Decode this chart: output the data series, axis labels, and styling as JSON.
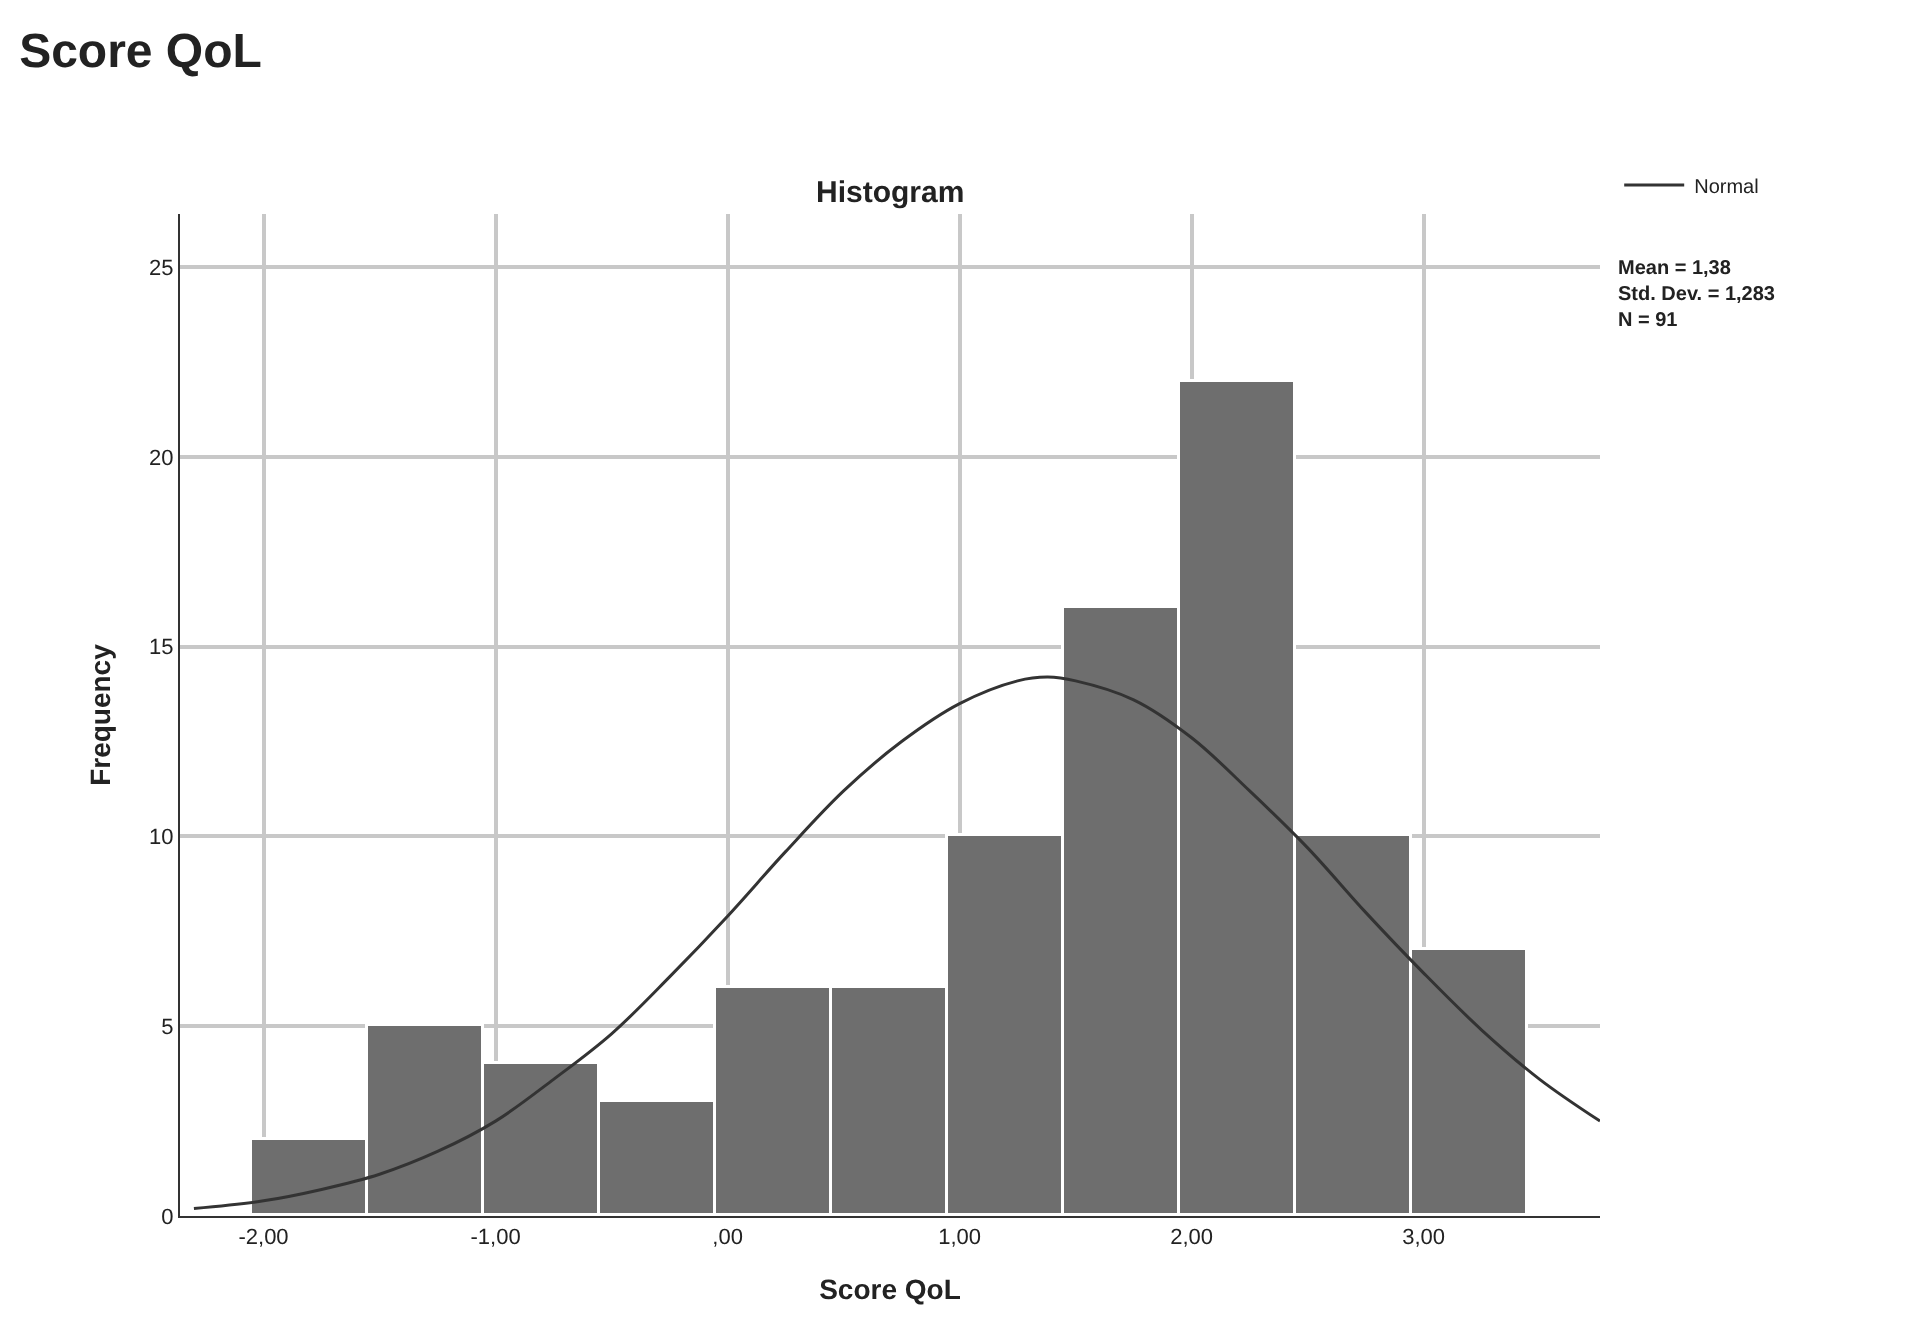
{
  "chart_data": {
    "type": "histogram",
    "title": "Score QoL",
    "subtitle": "Histogram",
    "xlabel": "Score QoL",
    "ylabel": "Frequency",
    "bins": [
      -2.05,
      -1.55,
      -1.05,
      -0.55,
      -0.05,
      0.45,
      0.95,
      1.45,
      1.95,
      2.45,
      2.95,
      3.45
    ],
    "values": [
      2,
      5,
      4,
      3,
      6,
      6,
      10,
      16,
      22,
      10,
      7
    ],
    "color": "#6e6e6e",
    "series": [
      {
        "type": "line",
        "name": "Normal",
        "color": "#333333",
        "x": [
          -2.3,
          -2.0,
          -1.75,
          -1.5,
          -1.25,
          -1.0,
          -0.75,
          -0.5,
          -0.25,
          0.0,
          0.25,
          0.5,
          0.75,
          1.0,
          1.25,
          1.38,
          1.5,
          1.75,
          2.0,
          2.25,
          2.5,
          2.75,
          3.0,
          3.25,
          3.5,
          3.76
        ],
        "values": [
          0.2,
          0.4,
          0.7,
          1.1,
          1.7,
          2.5,
          3.6,
          4.8,
          6.3,
          7.9,
          9.6,
          11.2,
          12.5,
          13.5,
          14.1,
          14.2,
          14.1,
          13.6,
          12.6,
          11.2,
          9.7,
          8.0,
          6.4,
          4.9,
          3.6,
          2.5
        ]
      }
    ],
    "xlim": [
      -2.36,
      3.76
    ],
    "ylim": [
      0,
      26.4
    ],
    "xticks": [
      {
        "value": -2,
        "label": "-2,00"
      },
      {
        "value": -1,
        "label": "-1,00"
      },
      {
        "value": 0,
        "label": ",00"
      },
      {
        "value": 1,
        "label": "1,00"
      },
      {
        "value": 2,
        "label": "2,00"
      },
      {
        "value": 3,
        "label": "3,00"
      }
    ],
    "yticks": [
      0,
      5,
      10,
      15,
      20,
      25
    ],
    "grid": true,
    "legend": "top right",
    "annotations": [
      "Mean = 1,38",
      "Std. Dev. = 1,283",
      "N = 91"
    ]
  }
}
